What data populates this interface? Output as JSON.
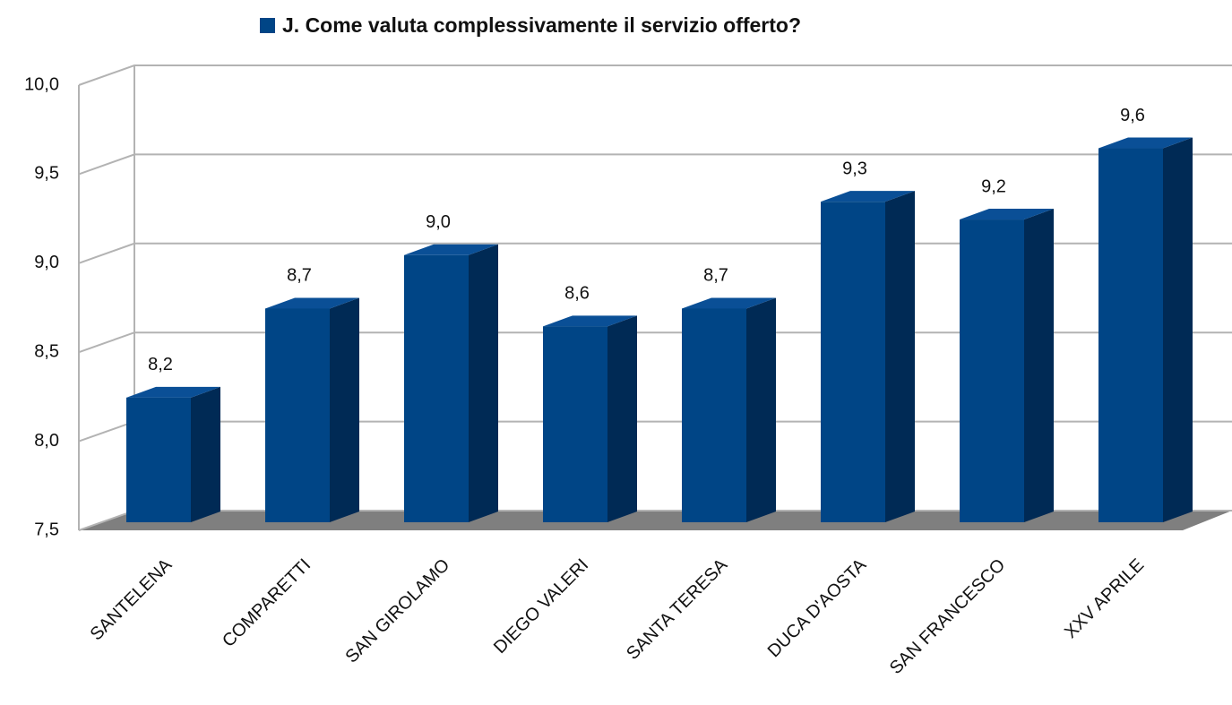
{
  "chart_data": {
    "type": "bar3d",
    "series": [
      {
        "name": "J. Come valuta complessivamente il servizio offerto?",
        "color": "#004586",
        "values": [
          8.2,
          8.7,
          9.0,
          8.6,
          8.7,
          9.3,
          9.2,
          9.6
        ],
        "value_labels": [
          "8,2",
          "8,7",
          "9,0",
          "8,6",
          "8,7",
          "9,3",
          "9,2",
          "9,6"
        ]
      }
    ],
    "categories": [
      "SANTELENA",
      "COMPARETTI",
      "SAN GIROLAMO",
      "DIEGO VALERI",
      "SANTA TERESA",
      "DUCA D'AOSTA",
      "SAN FRANCESCO",
      "XXV APRILE"
    ],
    "ylim": [
      7.5,
      10
    ],
    "yticks": [
      {
        "value": 7.5,
        "label": "7,5"
      },
      {
        "value": 8,
        "label": "8,0"
      },
      {
        "value": 8.5,
        "label": "8,5"
      },
      {
        "value": 9,
        "label": "9,0"
      },
      {
        "value": 9.5,
        "label": "9,5"
      },
      {
        "value": 10,
        "label": "10,0"
      }
    ],
    "grid": true,
    "legend": "top"
  }
}
